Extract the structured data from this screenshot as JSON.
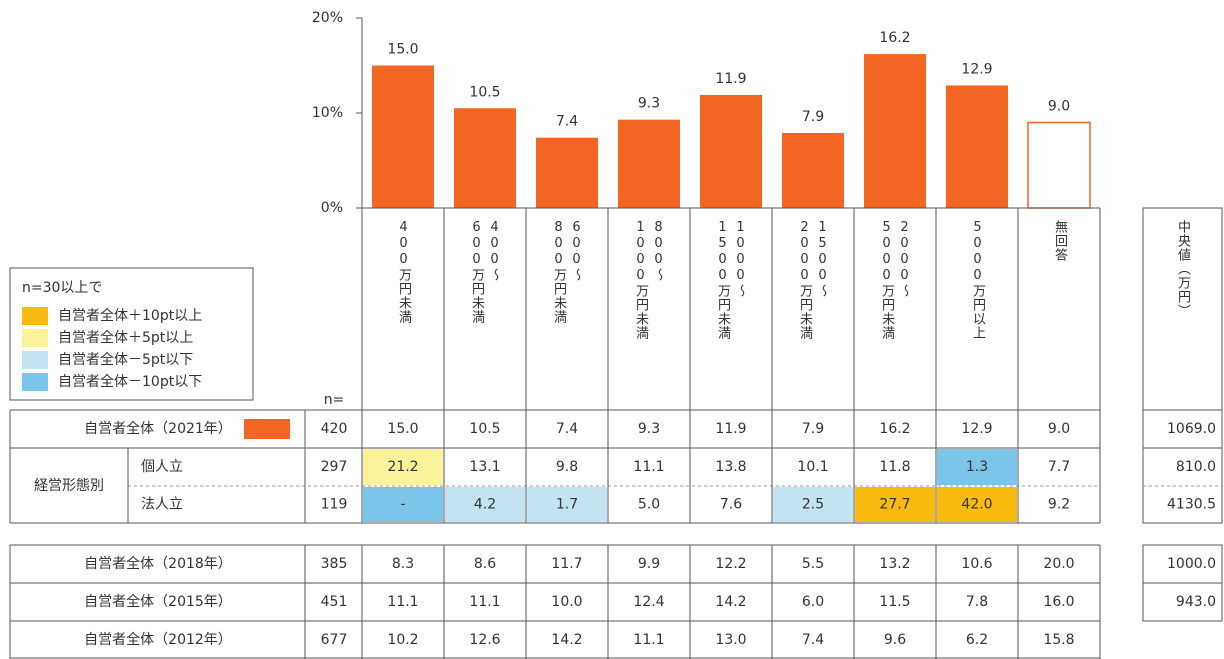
{
  "chart_data": {
    "type": "bar",
    "categories": [
      "400万円未満",
      "400〜\n600万円未満",
      "600〜\n800万円未満",
      "800〜\n1000万円未満",
      "1000〜\n1500万円未満",
      "1500〜\n2000万円未満",
      "2000〜\n5000万円未満",
      "5000万円以上",
      "無回答"
    ],
    "values": [
      15.0,
      10.5,
      7.4,
      9.3,
      11.9,
      7.9,
      16.2,
      12.9,
      9.0
    ],
    "value_labels": [
      "15.0",
      "10.5",
      "7.4",
      "9.3",
      "11.9",
      "7.9",
      "16.2",
      "12.9",
      "9.0"
    ],
    "colors": [
      "#f26522",
      "#f26522",
      "#f26522",
      "#f26522",
      "#f26522",
      "#f26522",
      "#f26522",
      "#f26522",
      "#ffffff"
    ],
    "edgecolor": "#f26522",
    "ylim": [
      0,
      20
    ],
    "yticks": [
      {
        "value": 0,
        "label": "0%"
      },
      {
        "value": 10,
        "label": "10%"
      },
      {
        "value": 20,
        "label": "20%"
      }
    ]
  },
  "legend": {
    "title": "n=30以上で",
    "items": [
      {
        "label": "自営者全体＋10pt以上",
        "color": "#f9bb10"
      },
      {
        "label": "自営者全体＋5pt以上",
        "color": "#fbf29c"
      },
      {
        "label": "自営者全体－5pt以下",
        "color": "#c1e4f0"
      },
      {
        "label": "自営者全体－10pt以下",
        "color": "#7cc5ea"
      }
    ]
  },
  "table": {
    "n_header": "n=",
    "median_header": "中央値（万円）",
    "top": {
      "label": "自営者全体（2021年）",
      "swatch": "#f26522",
      "n": "420",
      "cells": [
        "15.0",
        "10.5",
        "7.4",
        "9.3",
        "11.9",
        "7.9",
        "16.2",
        "12.9",
        "9.0"
      ],
      "median": "1069.0"
    },
    "group": {
      "label": "経営形態別",
      "rows": [
        {
          "label": "個人立",
          "n": "297",
          "cells": [
            "21.2",
            "13.1",
            "9.8",
            "11.1",
            "13.8",
            "10.1",
            "11.8",
            "1.3",
            "7.7"
          ],
          "cell_colors": [
            "#fbf29c",
            null,
            null,
            null,
            null,
            null,
            null,
            "#7cc5ea",
            null
          ],
          "median": "810.0"
        },
        {
          "label": "法人立",
          "n": "119",
          "cells": [
            "-",
            "4.2",
            "1.7",
            "5.0",
            "7.6",
            "2.5",
            "27.7",
            "42.0",
            "9.2"
          ],
          "cell_colors": [
            "#7cc5ea",
            "#c1e4f0",
            "#c1e4f0",
            null,
            null,
            "#c1e4f0",
            "#f9bb10",
            "#f9bb10",
            null
          ],
          "median": "4130.5"
        }
      ]
    },
    "history": [
      {
        "label": "自営者全体（2018年）",
        "n": "385",
        "cells": [
          "8.3",
          "8.6",
          "11.7",
          "9.9",
          "12.2",
          "5.5",
          "13.2",
          "10.6",
          "20.0"
        ],
        "median": "1000.0"
      },
      {
        "label": "自営者全体（2015年）",
        "n": "451",
        "cells": [
          "11.1",
          "11.1",
          "10.0",
          "12.4",
          "14.2",
          "6.0",
          "11.5",
          "7.8",
          "16.0"
        ],
        "median": "943.0"
      },
      {
        "label": "自営者全体（2012年）",
        "n": "677",
        "cells": [
          "10.2",
          "12.6",
          "14.2",
          "11.1",
          "13.0",
          "7.4",
          "9.6",
          "6.2",
          "15.8"
        ]
      }
    ]
  }
}
